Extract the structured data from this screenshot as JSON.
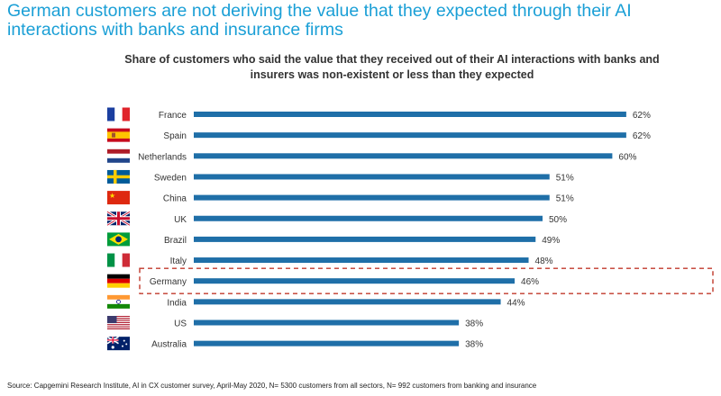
{
  "headline": "German customers are not deriving the value that they expected through their AI interactions with banks and insurance firms",
  "colors": {
    "bar": "#1f6fa8",
    "headline": "#1a9fd6",
    "highlight_border": "#c0392b"
  },
  "chart_data": {
    "type": "bar",
    "orientation": "horizontal",
    "title": "Share of customers who said the value that they received out of their AI interactions with banks and insurers was non-existent or less than they expected",
    "categories": [
      "France",
      "Spain",
      "Netherlands",
      "Sweden",
      "China",
      "UK",
      "Brazil",
      "Italy",
      "Germany",
      "India",
      "US",
      "Australia"
    ],
    "values": [
      62,
      62,
      60,
      51,
      51,
      50,
      49,
      48,
      46,
      44,
      38,
      38
    ],
    "value_labels": [
      "62%",
      "62%",
      "60%",
      "51%",
      "51%",
      "50%",
      "49%",
      "48%",
      "46%",
      "44%",
      "38%",
      "38%"
    ],
    "flags": [
      "france-flag-icon",
      "spain-flag-icon",
      "netherlands-flag-icon",
      "sweden-flag-icon",
      "china-flag-icon",
      "uk-flag-icon",
      "brazil-flag-icon",
      "italy-flag-icon",
      "germany-flag-icon",
      "india-flag-icon",
      "us-flag-icon",
      "australia-flag-icon"
    ],
    "highlighted": "Germany",
    "xlim": [
      0,
      100
    ],
    "xlabel": "",
    "ylabel": ""
  },
  "source": "Source: Capgemini Research Institute, AI in CX customer survey, April-May 2020, N= 5300 customers from all sectors, N= 992 customers from banking and insurance"
}
